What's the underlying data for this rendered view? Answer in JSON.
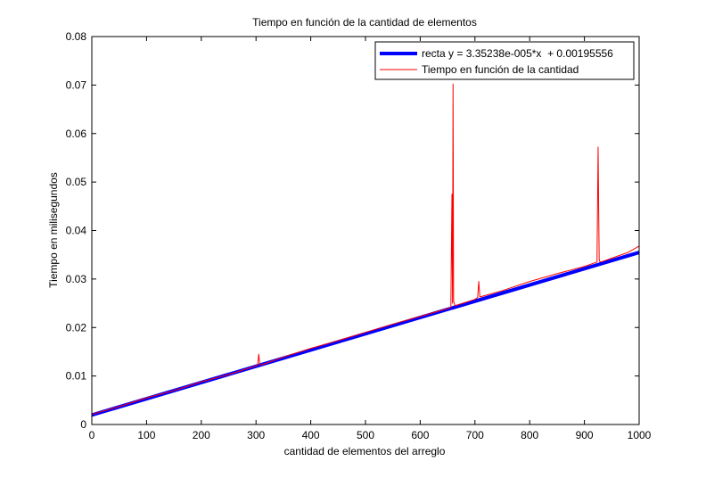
{
  "chart_data": {
    "type": "line",
    "title": "Tiempo en función de la cantidad de elementos",
    "xlabel": "cantidad de elementos del arreglo",
    "ylabel": "Tiempo en milisegundos",
    "xlim": [
      0,
      1000
    ],
    "ylim": [
      0,
      0.08
    ],
    "x_ticks": [
      "0",
      "100",
      "200",
      "300",
      "400",
      "500",
      "600",
      "700",
      "800",
      "900",
      "1000"
    ],
    "y_ticks": [
      "0",
      "0.01",
      "0.02",
      "0.03",
      "0.04",
      "0.05",
      "0.06",
      "0.07",
      "0.08"
    ],
    "grid": false,
    "legend_position": "top-right",
    "series": [
      {
        "name": "recta y = 3.35238e-005*x  + 0.00195556",
        "kind": "fit",
        "color": "#0000ff",
        "x": [
          0,
          1000
        ],
        "y": [
          0.00195556,
          0.03548
        ]
      },
      {
        "name": "Tiempo en función de la cantidad",
        "kind": "measured",
        "color": "#ff0000",
        "x": [
          0,
          50,
          100,
          150,
          200,
          250,
          300,
          303,
          305,
          307,
          310,
          350,
          400,
          450,
          500,
          550,
          600,
          650,
          656,
          658,
          659,
          660,
          661,
          662,
          664,
          700,
          705,
          707,
          709,
          750,
          800,
          850,
          900,
          923,
          925,
          926,
          927,
          928,
          930,
          950,
          980,
          1000
        ],
        "y": [
          0.0021,
          0.0037,
          0.0055,
          0.007,
          0.0088,
          0.0103,
          0.0121,
          0.0123,
          0.0145,
          0.0124,
          0.0123,
          0.0139,
          0.0157,
          0.0173,
          0.019,
          0.0207,
          0.0223,
          0.0239,
          0.0242,
          0.0475,
          0.025,
          0.0702,
          0.0255,
          0.025,
          0.0245,
          0.0258,
          0.0262,
          0.0295,
          0.0263,
          0.0276,
          0.0295,
          0.0311,
          0.0326,
          0.0335,
          0.0572,
          0.045,
          0.034,
          0.0336,
          0.0335,
          0.0343,
          0.0355,
          0.0368
        ]
      }
    ]
  }
}
